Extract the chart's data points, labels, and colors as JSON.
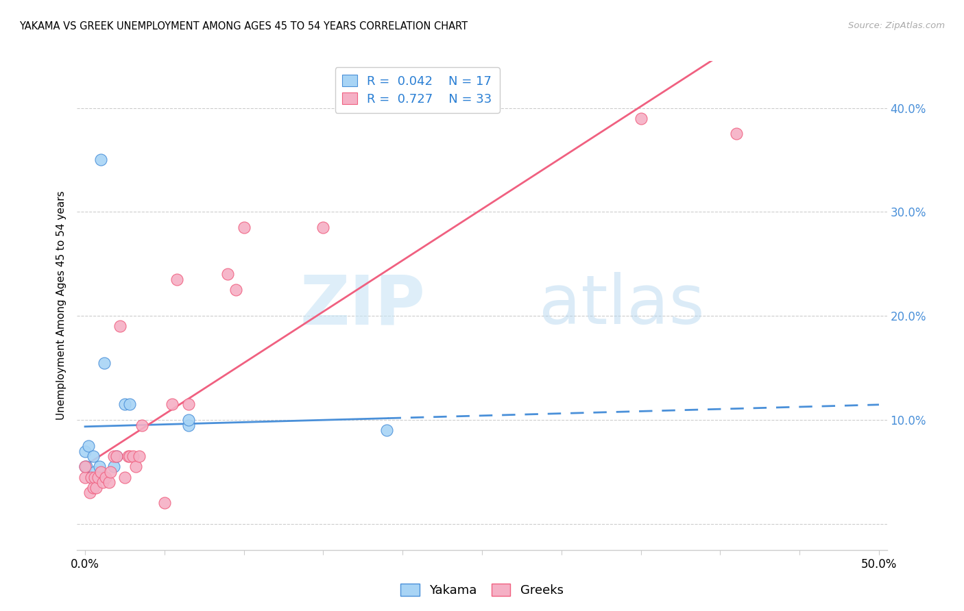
{
  "title": "YAKAMA VS GREEK UNEMPLOYMENT AMONG AGES 45 TO 54 YEARS CORRELATION CHART",
  "source": "Source: ZipAtlas.com",
  "ylabel": "Unemployment Among Ages 45 to 54 years",
  "xlim": [
    -0.005,
    0.505
  ],
  "ylim": [
    -0.025,
    0.445
  ],
  "xticks": [
    0.0,
    0.05,
    0.1,
    0.15,
    0.2,
    0.25,
    0.3,
    0.35,
    0.4,
    0.45,
    0.5
  ],
  "yticks": [
    0.0,
    0.1,
    0.2,
    0.3,
    0.4
  ],
  "yakama_color": "#a8d4f5",
  "greeks_color": "#f5b0c5",
  "yakama_line_color": "#4a90d9",
  "greeks_line_color": "#f06080",
  "yakama_x": [
    0.0,
    0.0,
    0.001,
    0.002,
    0.004,
    0.005,
    0.006,
    0.009,
    0.01,
    0.012,
    0.018,
    0.02,
    0.025,
    0.028,
    0.065,
    0.065,
    0.19
  ],
  "yakama_y": [
    0.055,
    0.07,
    0.055,
    0.075,
    0.045,
    0.065,
    0.05,
    0.055,
    0.35,
    0.155,
    0.055,
    0.065,
    0.115,
    0.115,
    0.095,
    0.1,
    0.09
  ],
  "greeks_x": [
    0.0,
    0.0,
    0.003,
    0.004,
    0.005,
    0.006,
    0.007,
    0.008,
    0.01,
    0.011,
    0.013,
    0.015,
    0.016,
    0.018,
    0.02,
    0.022,
    0.025,
    0.027,
    0.028,
    0.03,
    0.032,
    0.034,
    0.036,
    0.05,
    0.055,
    0.058,
    0.065,
    0.09,
    0.095,
    0.1,
    0.15,
    0.35,
    0.41
  ],
  "greeks_y": [
    0.045,
    0.055,
    0.03,
    0.045,
    0.035,
    0.045,
    0.035,
    0.045,
    0.05,
    0.04,
    0.045,
    0.04,
    0.05,
    0.065,
    0.065,
    0.19,
    0.045,
    0.065,
    0.065,
    0.065,
    0.055,
    0.065,
    0.095,
    0.02,
    0.115,
    0.235,
    0.115,
    0.24,
    0.225,
    0.285,
    0.285,
    0.39,
    0.375
  ]
}
